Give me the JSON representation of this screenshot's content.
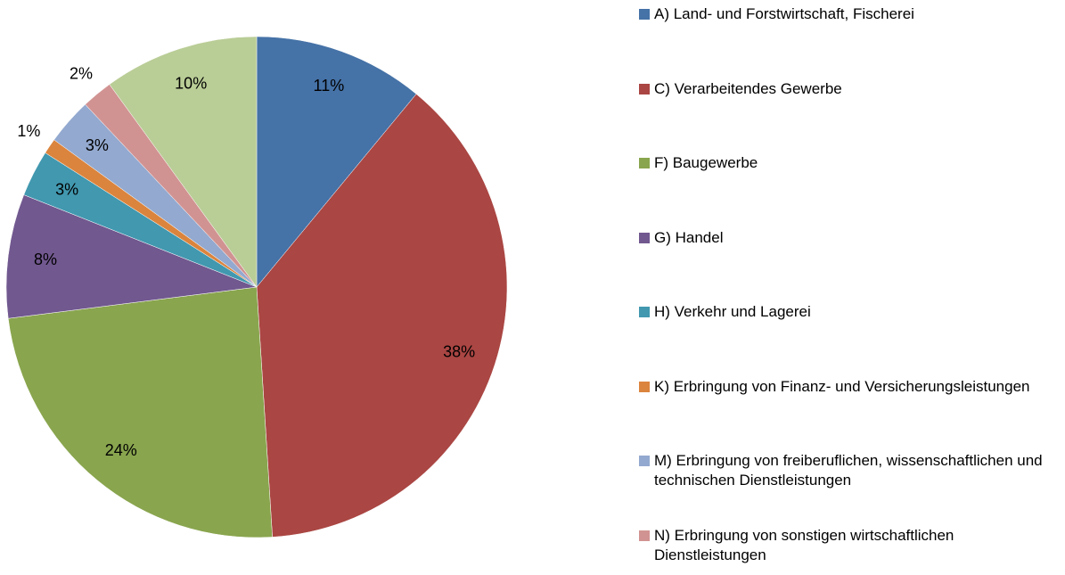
{
  "chart_data": {
    "type": "pie",
    "categories": [
      "A) Land- und Forstwirtschaft, Fischerei",
      "C) Verarbeitendes Gewerbe",
      "F) Baugewerbe",
      "G) Handel",
      "H) Verkehr und Lagerei",
      "K) Erbringung von Finanz- und Versicherungsleistungen",
      "M) Erbringung von freiberuflichen, wissenschaftlichen und technischen Dienstleistungen",
      "N) Erbringung von sonstigen wirtschaftlichen Dienstleistungen",
      null
    ],
    "values": [
      11,
      38,
      24,
      8,
      3,
      1,
      3,
      2,
      10
    ],
    "value_labels": [
      "11%",
      "38%",
      "24%",
      "8%",
      "3%",
      "1%",
      "3%",
      "2%",
      "10%"
    ],
    "colors": [
      "#4572a7",
      "#aa4643",
      "#89a54e",
      "#71588f",
      "#4198af",
      "#db843d",
      "#93a9cf",
      "#d19392",
      "#b9cd96"
    ],
    "legend": "right"
  }
}
